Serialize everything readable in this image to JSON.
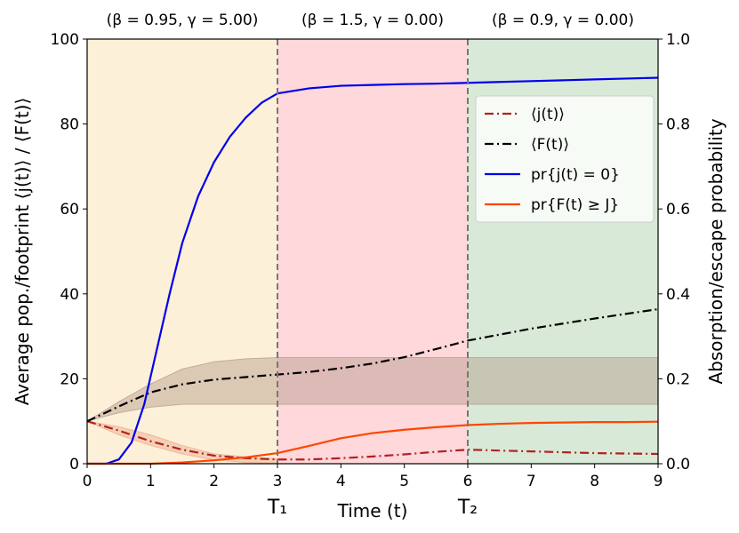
{
  "chart_data": {
    "type": "line",
    "xlabel": "Time (t)",
    "ylabel_left": "Average pop./footprint   ⟨j(t)⟩ / ⟨F(t)⟩",
    "ylabel_right": "Absorption/escape probability",
    "xlim": [
      0,
      9
    ],
    "ylim_left": [
      0,
      100
    ],
    "ylim_right": [
      0,
      1.0
    ],
    "grid": false,
    "legend_position": "upper-right",
    "x_ticks": [
      0,
      1,
      2,
      3,
      4,
      5,
      6,
      7,
      8,
      9
    ],
    "y_left_ticks": [
      0,
      20,
      40,
      60,
      80,
      100
    ],
    "y_right_ticks": [
      "0.0",
      "0.2",
      "0.4",
      "0.6",
      "0.8",
      "1.0"
    ],
    "markers": [
      {
        "x": 3,
        "label": "T₁"
      },
      {
        "x": 6,
        "label": "T₂"
      }
    ],
    "phases": [
      {
        "x0": 0,
        "x1": 3,
        "label": "(β = 0.95, γ = 5.00)",
        "color": "#fdf0d8"
      },
      {
        "x0": 3,
        "x1": 6,
        "label": "(β = 1.5, γ = 0.00)",
        "color": "#fed8da"
      },
      {
        "x0": 6,
        "x1": 9,
        "label": "(β = 0.9, γ = 0.00)",
        "color": "#d8ead7"
      }
    ],
    "series": [
      {
        "name": "⟨j(t)⟩",
        "axis": "left",
        "color": "#b22222",
        "style": "dashdot",
        "x": [
          0,
          0.5,
          1,
          1.5,
          2,
          2.5,
          3,
          3.5,
          4,
          4.5,
          5,
          5.5,
          6,
          6.5,
          7,
          7.5,
          8,
          8.5,
          9
        ],
        "y": [
          10,
          7.8,
          5.3,
          3.3,
          1.9,
          1.3,
          1.0,
          1.0,
          1.3,
          1.7,
          2.2,
          2.8,
          3.3,
          3.1,
          2.9,
          2.7,
          2.5,
          2.4,
          2.3
        ]
      },
      {
        "name": "⟨F(t)⟩",
        "axis": "left",
        "color": "#000000",
        "style": "dashdot",
        "x": [
          0,
          0.5,
          1,
          1.5,
          2,
          2.5,
          3,
          3.5,
          4,
          4.5,
          5,
          5.5,
          6,
          6.5,
          7,
          7.5,
          8,
          8.5,
          9
        ],
        "y": [
          10,
          13.5,
          16.8,
          18.7,
          19.8,
          20.4,
          21.0,
          21.6,
          22.5,
          23.6,
          25.1,
          27.0,
          29.0,
          30.4,
          31.8,
          33.0,
          34.2,
          35.3,
          36.4
        ]
      },
      {
        "name": "pr{j(t) = 0}",
        "axis": "right",
        "color": "#0000ee",
        "style": "solid",
        "x": [
          0,
          0.3,
          0.5,
          0.7,
          0.9,
          1.1,
          1.3,
          1.5,
          1.75,
          2.0,
          2.25,
          2.5,
          2.75,
          3.0,
          3.5,
          4.0,
          4.5,
          5,
          5.5,
          6,
          6.5,
          7,
          7.5,
          8,
          8.5,
          9
        ],
        "y": [
          0,
          0,
          0.01,
          0.05,
          0.14,
          0.27,
          0.4,
          0.52,
          0.63,
          0.71,
          0.77,
          0.815,
          0.85,
          0.872,
          0.884,
          0.89,
          0.892,
          0.894,
          0.895,
          0.897,
          0.899,
          0.901,
          0.903,
          0.905,
          0.907,
          0.909
        ]
      },
      {
        "name": "pr{F(t) ≥ J}",
        "axis": "right",
        "color": "#ff4500",
        "style": "solid",
        "x": [
          0,
          1,
          1.5,
          2,
          2.5,
          3,
          3.5,
          4,
          4.5,
          5,
          5.5,
          6,
          6.5,
          7,
          7.5,
          8,
          8.5,
          9
        ],
        "y": [
          0,
          0,
          0.003,
          0.008,
          0.015,
          0.025,
          0.042,
          0.06,
          0.072,
          0.08,
          0.086,
          0.091,
          0.094,
          0.096,
          0.097,
          0.098,
          0.098,
          0.099
        ]
      }
    ],
    "bands": [
      {
        "of": "⟨j(t)⟩",
        "axis": "left",
        "color": "#e8a88a",
        "x": [
          0,
          0.5,
          1,
          1.5,
          2,
          2.5,
          3
        ],
        "lower": [
          10,
          6.8,
          4.3,
          2.3,
          0.9,
          0.3,
          0.1
        ],
        "upper": [
          10,
          8.7,
          6.8,
          4.3,
          2.3,
          1.6,
          1.2
        ]
      },
      {
        "of": "⟨F(t)⟩",
        "axis": "left",
        "color": "#b49a8a",
        "x": [
          0,
          0.5,
          1,
          1.5,
          2,
          2.5,
          3,
          9
        ],
        "lower": [
          10,
          12,
          13.3,
          14,
          14,
          14,
          14,
          14
        ],
        "upper": [
          10,
          14.6,
          18.8,
          22.3,
          24.0,
          24.7,
          25.0,
          25.0
        ]
      }
    ]
  }
}
